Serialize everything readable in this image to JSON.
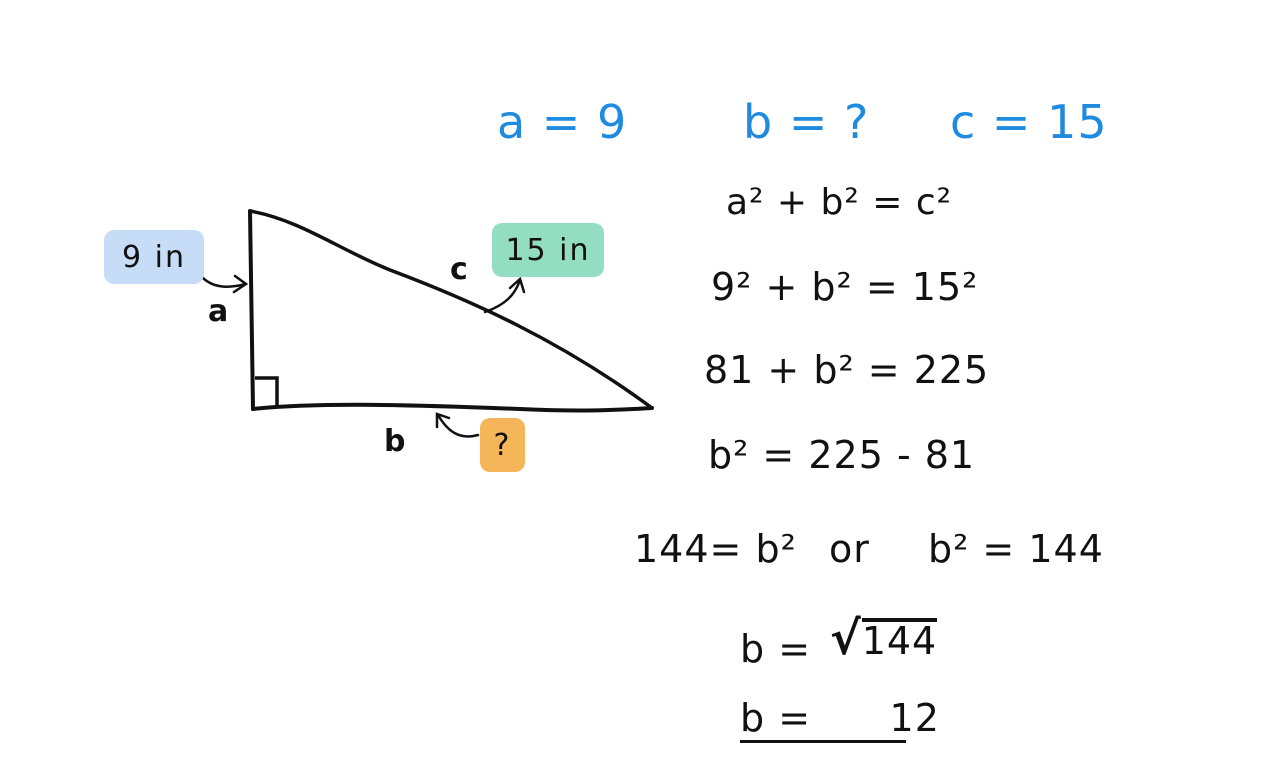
{
  "given": {
    "a": "a = 9",
    "b": "b = ?",
    "c": "c = 15"
  },
  "triangle": {
    "side_a_label": "a",
    "side_b_label": "b",
    "side_c_label": "c",
    "badge_a": "9 in",
    "badge_b": "?",
    "badge_c": "15 in"
  },
  "steps": {
    "formula": "a² + b² = c²",
    "substitute": "9² + b² = 15²",
    "square": "81 + b² = 225",
    "isolate": "b² = 225 - 81",
    "result_left": "144= b²",
    "or_word": "or",
    "result_right": "b² = 144",
    "sqrt_lhs": "b =",
    "sqrt_symbol": "√",
    "sqrt_value": "144",
    "answer": "b =      12"
  },
  "colors": {
    "given_text": "#1f8be0",
    "badge_a": "#c6dcf7",
    "badge_b": "#f5b65a",
    "badge_c": "#93ddc2"
  }
}
